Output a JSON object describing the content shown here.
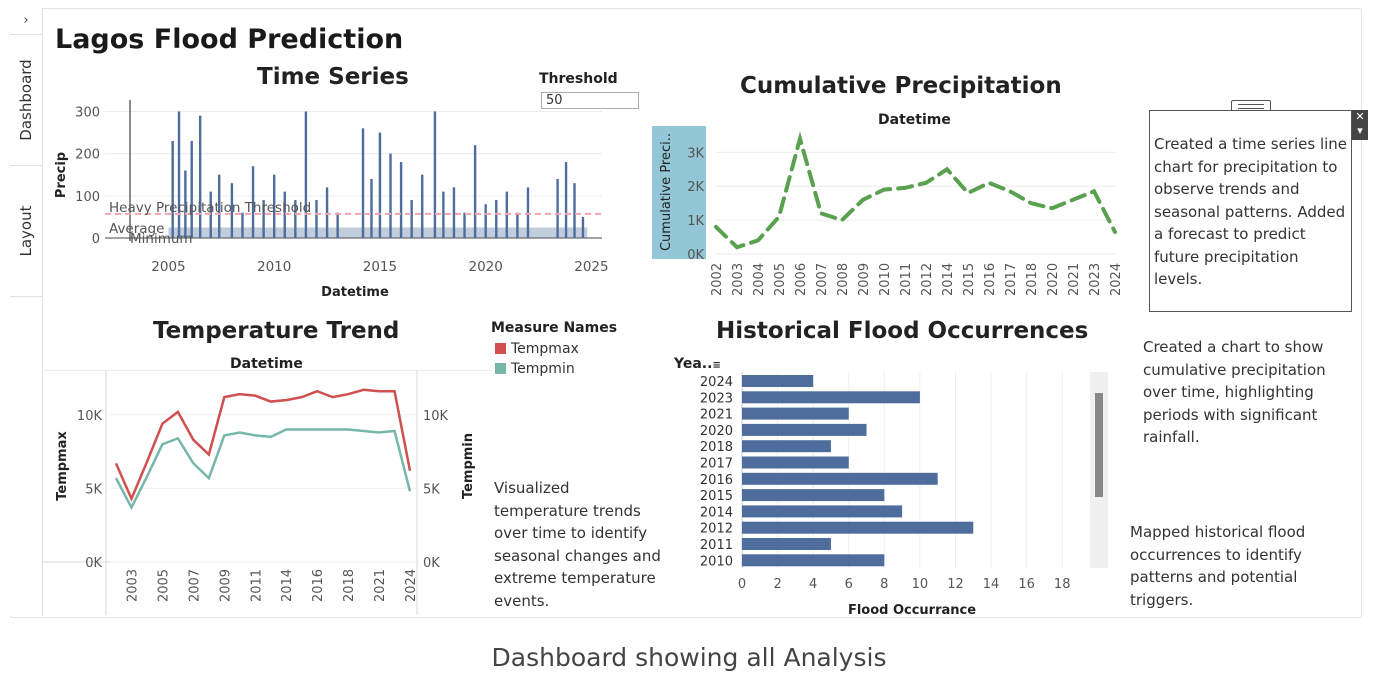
{
  "sidebar": {
    "toggle_icon": "chevron-right-icon",
    "tabs": [
      "Dashboard",
      "Layout"
    ]
  },
  "dashboard_title": "Lagos Flood Prediction",
  "threshold": {
    "label": "Threshold",
    "value": "50"
  },
  "time_series": {
    "title": "Time Series",
    "xlabel": "Datetime",
    "ylabel": "Precip",
    "annotations": [
      "Heavy Precipitation Threshold",
      "Average",
      "Minimum"
    ]
  },
  "cumulative": {
    "title": "Cumulative Precipitation",
    "top_label": "Datetime",
    "ylabel": "Cumulative Preci.."
  },
  "temperature": {
    "title": "Temperature Trend",
    "top_label": "Datetime",
    "ylabel_left": "Tempmax",
    "ylabel_right": "Tempmin"
  },
  "legend": {
    "title": "Measure Names",
    "items": [
      {
        "label": "Tempmax",
        "color": "#d0504f"
      },
      {
        "label": "Tempmin",
        "color": "#76b7a9"
      }
    ]
  },
  "flood": {
    "title": "Historical Flood Occurrences",
    "y_header": "Yea..",
    "sort_icon": "sort-icon",
    "xlabel": "Flood Occurrance"
  },
  "notes": {
    "time_series": "Created a time series line chart for precipitation to observe trends and seasonal patterns. Added a forecast to predict future precipitation levels.",
    "cumulative": "Created a chart to show cumulative precipitation over time, highlighting periods with significant rainfall.",
    "temperature": "Visualized temperature trends over time to identify seasonal changes and extreme temperature events.",
    "flood": "Mapped historical flood occurrences to identify patterns and potential triggers."
  },
  "caption": "Dashboard showing all Analysis",
  "colors": {
    "bar_blue": "#4e6d9c",
    "green": "#59a14f",
    "red": "#d0504f",
    "teal": "#76b7a9",
    "threshold_pink": "#f4a3ad"
  },
  "chart_data": [
    {
      "type": "bar",
      "chart": "time_series",
      "title": "Time Series",
      "xlabel": "Datetime",
      "ylabel": "Precip",
      "xlim": [
        2002,
        2025.5
      ],
      "ylim": [
        0,
        320
      ],
      "xticks": [
        "2005",
        "2010",
        "2015",
        "2020",
        "2025"
      ],
      "yticks": [
        "0",
        "100",
        "200",
        "300"
      ],
      "threshold": 50,
      "x": [
        2005.2,
        2005.5,
        2005.8,
        2006.1,
        2006.5,
        2007.0,
        2007.4,
        2008.0,
        2008.5,
        2009.0,
        2009.5,
        2010.0,
        2010.5,
        2011.0,
        2011.5,
        2012.0,
        2012.5,
        2013.0,
        2014.2,
        2014.6,
        2015.0,
        2015.5,
        2016.0,
        2016.5,
        2017.0,
        2017.6,
        2018.0,
        2018.5,
        2019.0,
        2019.5,
        2020.0,
        2020.5,
        2021.0,
        2021.5,
        2022.0,
        2023.4,
        2023.8,
        2024.2,
        2024.6
      ],
      "values": [
        230,
        300,
        160,
        230,
        290,
        110,
        150,
        130,
        60,
        170,
        90,
        150,
        110,
        90,
        300,
        90,
        120,
        60,
        260,
        140,
        250,
        200,
        180,
        90,
        150,
        300,
        110,
        120,
        60,
        220,
        80,
        90,
        110,
        60,
        120,
        140,
        180,
        130,
        50
      ]
    },
    {
      "type": "line",
      "chart": "cumulative",
      "title": "Cumulative Precipitation",
      "xlabel": "Datetime",
      "ylabel": "Cumulative Preci..",
      "categories": [
        "2002",
        "2003",
        "2004",
        "2005",
        "2006",
        "2007",
        "2008",
        "2009",
        "2010",
        "2011",
        "2012",
        "2014",
        "2015",
        "2016",
        "2017",
        "2018",
        "2020",
        "2021",
        "2023",
        "2024"
      ],
      "values": [
        800,
        200,
        400,
        1100,
        3400,
        1200,
        1000,
        1600,
        1900,
        1950,
        2100,
        2500,
        1800,
        2100,
        1850,
        1500,
        1350,
        1600,
        1850,
        650
      ],
      "yticks": [
        "0K",
        "1K",
        "2K",
        "3K"
      ],
      "ylim": [
        0,
        3600
      ]
    },
    {
      "type": "line",
      "chart": "temperature",
      "title": "Temperature Trend",
      "xlabel": "Datetime",
      "categories": [
        "2002",
        "2003",
        "2004",
        "2005",
        "2006",
        "2007",
        "2008",
        "2009",
        "2010",
        "2011",
        "2012",
        "2014",
        "2015",
        "2016",
        "2017",
        "2018",
        "2020",
        "2021",
        "2023",
        "2024"
      ],
      "xticks": [
        "2003",
        "2005",
        "2007",
        "2009",
        "2011",
        "2014",
        "2016",
        "2018",
        "2021",
        "2024"
      ],
      "series": [
        {
          "name": "Tempmax",
          "values": [
            6700,
            4300,
            6800,
            9400,
            10200,
            8300,
            7300,
            11200,
            11400,
            11300,
            10900,
            11000,
            11200,
            11600,
            11200,
            11400,
            11700,
            11600,
            11600,
            6200
          ]
        },
        {
          "name": "Tempmin",
          "values": [
            5700,
            3700,
            5800,
            8000,
            8400,
            6700,
            5700,
            8600,
            8800,
            8600,
            8500,
            9000,
            9000,
            9000,
            9000,
            9000,
            8900,
            8800,
            8900,
            4800
          ]
        }
      ],
      "ylabel_left": "Tempmax",
      "ylabel_right": "Tempmin",
      "yticks": [
        "0K",
        "5K",
        "10K"
      ],
      "ylim": [
        0,
        12500
      ]
    },
    {
      "type": "bar",
      "chart": "flood",
      "orientation": "horizontal",
      "title": "Historical Flood Occurrences",
      "xlabel": "Flood Occurrance",
      "categories": [
        "2024",
        "2023",
        "2021",
        "2020",
        "2018",
        "2017",
        "2016",
        "2015",
        "2014",
        "2012",
        "2011",
        "2010"
      ],
      "values": [
        4,
        10,
        6,
        7,
        5,
        6,
        11,
        8,
        9,
        13,
        5,
        8
      ],
      "xticks": [
        "0",
        "2",
        "4",
        "6",
        "8",
        "10",
        "12",
        "14",
        "16",
        "18"
      ],
      "xlim": [
        0,
        19
      ]
    }
  ]
}
